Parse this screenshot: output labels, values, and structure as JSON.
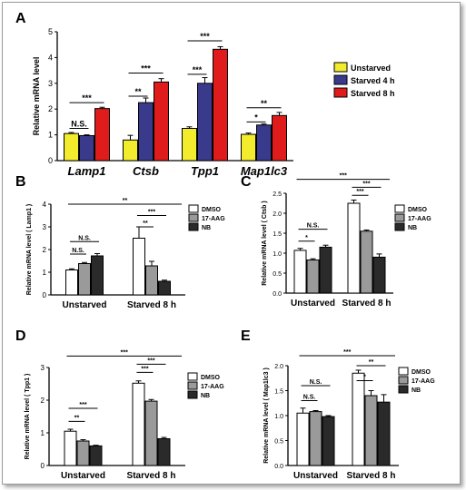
{
  "chart_data": [
    {
      "panel": "A",
      "type": "bar",
      "ylabel": "Relative mRNA level",
      "ylim": [
        0,
        5
      ],
      "yticks": [
        "0",
        "1",
        "2",
        "3",
        "4",
        "5"
      ],
      "categories": [
        "Lamp1",
        "Ctsb",
        "Tpp1",
        "Map1lc3"
      ],
      "legend": "right",
      "series": [
        {
          "name": "Unstarved",
          "color": "#f2ec2c",
          "values": [
            1.05,
            0.8,
            1.25,
            1.02
          ],
          "errors": [
            0.04,
            0.18,
            0.06,
            0.05
          ]
        },
        {
          "name": "Starved 4 h",
          "color": "#3a3a8c",
          "values": [
            0.97,
            2.25,
            3.0,
            1.38
          ],
          "errors": [
            0.03,
            0.18,
            0.22,
            0.04
          ]
        },
        {
          "name": "Starved 8 h",
          "color": "#e01b1b",
          "values": [
            2.02,
            3.05,
            4.32,
            1.75
          ],
          "errors": [
            0.05,
            0.13,
            0.1,
            0.12
          ]
        }
      ],
      "significance": [
        {
          "group": 0,
          "from": 0,
          "to": 1,
          "y": 1.25,
          "label": "N.S."
        },
        {
          "group": 0,
          "from": 0,
          "to": 2,
          "y": 2.25,
          "label": "***"
        },
        {
          "group": 1,
          "from": 0,
          "to": 1,
          "y": 2.5,
          "label": "**"
        },
        {
          "group": 1,
          "from": 0,
          "to": 2,
          "y": 3.4,
          "label": "***"
        },
        {
          "group": 2,
          "from": 0,
          "to": 1,
          "y": 3.35,
          "label": "***"
        },
        {
          "group": 2,
          "from": 0,
          "to": 2,
          "y": 4.65,
          "label": "***"
        },
        {
          "group": 3,
          "from": 0,
          "to": 1,
          "y": 1.5,
          "label": "*"
        },
        {
          "group": 3,
          "from": 0,
          "to": 2,
          "y": 2.05,
          "label": "**"
        }
      ]
    },
    {
      "panel": "B",
      "type": "bar",
      "ylabel": "Relative mRNA level ( Lamp1 )",
      "ylim": [
        0,
        4
      ],
      "yticks": [
        "0",
        "1",
        "2",
        "3",
        "4"
      ],
      "categories": [
        "Unstarved",
        "Starved 8 h"
      ],
      "legend": "top-right",
      "series": [
        {
          "name": "DMSO",
          "color": "#ffffff",
          "values": [
            1.1,
            2.5
          ],
          "errors": [
            0.05,
            0.5
          ]
        },
        {
          "name": "17-AAG",
          "color": "#9a9a9a",
          "values": [
            1.38,
            1.28
          ],
          "errors": [
            0.05,
            0.2
          ]
        },
        {
          "name": "NB",
          "color": "#2a2a2a",
          "values": [
            1.72,
            0.6
          ],
          "errors": [
            0.1,
            0.05
          ]
        }
      ],
      "significance": [
        {
          "group": 0,
          "from": 0,
          "to": 1,
          "y": 1.8,
          "label": "N.S."
        },
        {
          "group": 0,
          "from": 0,
          "to": 2,
          "y": 2.35,
          "label": "N.S."
        },
        {
          "group": 1,
          "from": 0,
          "to": 1,
          "y": 3.0,
          "label": "**"
        },
        {
          "group": 1,
          "from": 0,
          "to": 2,
          "y": 3.5,
          "label": "***"
        },
        {
          "span": true,
          "x1": [
            0,
            0
          ],
          "x2": [
            1,
            0
          ],
          "y": 4.0,
          "label": "**"
        }
      ]
    },
    {
      "panel": "C",
      "type": "bar",
      "ylabel": "Relative mRNA level ( Ctsb )",
      "ylim": [
        0,
        2.5
      ],
      "yticks": [
        "0.0",
        "0.5",
        "1.0",
        "1.5",
        "2.0",
        "2.5"
      ],
      "categories": [
        "Unstarved",
        "Starved 8 h"
      ],
      "legend": "top-right",
      "series": [
        {
          "name": "DMSO",
          "color": "#ffffff",
          "values": [
            1.07,
            2.25
          ],
          "errors": [
            0.05,
            0.08
          ]
        },
        {
          "name": "17-AAG",
          "color": "#9a9a9a",
          "values": [
            0.83,
            1.55
          ],
          "errors": [
            0.03,
            0.03
          ]
        },
        {
          "name": "NB",
          "color": "#2a2a2a",
          "values": [
            1.15,
            0.9
          ],
          "errors": [
            0.05,
            0.08
          ]
        }
      ],
      "significance": [
        {
          "group": 0,
          "from": 0,
          "to": 1,
          "y": 1.3,
          "label": "*"
        },
        {
          "group": 0,
          "from": 0,
          "to": 2,
          "y": 1.6,
          "label": "N.S."
        },
        {
          "group": 1,
          "from": 0,
          "to": 1,
          "y": 2.45,
          "label": "***"
        },
        {
          "group": 1,
          "from": 0,
          "to": 2,
          "y": 2.65,
          "label": "***"
        },
        {
          "span": true,
          "x1": [
            0,
            0
          ],
          "x2": [
            1,
            0
          ],
          "y": 2.85,
          "label": "***"
        }
      ]
    },
    {
      "panel": "D",
      "type": "bar",
      "ylabel": "Relative mRNA level ( Tpp1 )",
      "ylim": [
        0,
        3
      ],
      "yticks": [
        "0",
        "1",
        "2",
        "3"
      ],
      "categories": [
        "Unstarved",
        "Starved 8 h"
      ],
      "legend": "top-right",
      "series": [
        {
          "name": "DMSO",
          "color": "#ffffff",
          "values": [
            1.05,
            2.52
          ],
          "errors": [
            0.06,
            0.07
          ]
        },
        {
          "name": "17-AAG",
          "color": "#9a9a9a",
          "values": [
            0.75,
            1.97
          ],
          "errors": [
            0.04,
            0.05
          ]
        },
        {
          "name": "NB",
          "color": "#2a2a2a",
          "values": [
            0.6,
            0.82
          ],
          "errors": [
            0.02,
            0.04
          ]
        }
      ],
      "significance": [
        {
          "group": 0,
          "from": 0,
          "to": 1,
          "y": 1.35,
          "label": "**"
        },
        {
          "group": 0,
          "from": 0,
          "to": 2,
          "y": 1.75,
          "label": "***"
        },
        {
          "group": 1,
          "from": 0,
          "to": 1,
          "y": 2.85,
          "label": "***"
        },
        {
          "group": 1,
          "from": 0,
          "to": 2,
          "y": 3.1,
          "label": "***"
        },
        {
          "span": true,
          "x1": [
            0,
            0
          ],
          "x2": [
            1,
            0
          ],
          "y": 3.35,
          "label": "***"
        }
      ]
    },
    {
      "panel": "E",
      "type": "bar",
      "ylabel": "Relative mRNA level ( Map1lc3 )",
      "ylim": [
        0,
        2
      ],
      "yticks": [
        "0.0",
        "0.5",
        "1.0",
        "1.5",
        "2.0"
      ],
      "categories": [
        "Unstarved",
        "Starved 8 h"
      ],
      "legend": "top-right",
      "series": [
        {
          "name": "DMSO",
          "color": "#ffffff",
          "values": [
            1.05,
            1.85
          ],
          "errors": [
            0.1,
            0.06
          ]
        },
        {
          "name": "17-AAG",
          "color": "#9a9a9a",
          "values": [
            1.08,
            1.4
          ],
          "errors": [
            0.02,
            0.1
          ]
        },
        {
          "name": "NB",
          "color": "#2a2a2a",
          "values": [
            0.98,
            1.27
          ],
          "errors": [
            0.02,
            0.15
          ]
        }
      ],
      "significance": [
        {
          "group": 0,
          "from": 0,
          "to": 1,
          "y": 1.3,
          "label": "N.S."
        },
        {
          "group": 0,
          "from": 0,
          "to": 2,
          "y": 1.6,
          "label": "N.S."
        },
        {
          "group": 1,
          "from": 0,
          "to": 1,
          "y": 1.7,
          "label": "*"
        },
        {
          "group": 1,
          "from": 0,
          "to": 2,
          "y": 2.0,
          "label": "**"
        },
        {
          "span": true,
          "x1": [
            0,
            0
          ],
          "x2": [
            1,
            0
          ],
          "y": 2.2,
          "label": "***"
        }
      ]
    }
  ]
}
